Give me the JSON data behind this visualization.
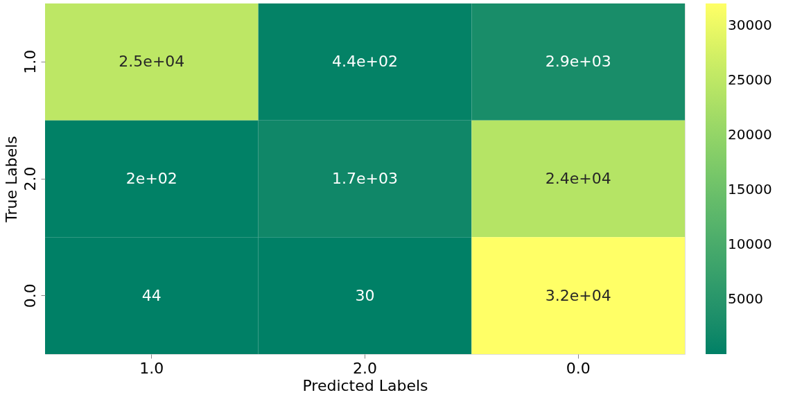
{
  "chart_data": {
    "type": "heatmap",
    "xlabel": "Predicted Labels",
    "ylabel": "True Labels",
    "categories": [
      "1.0",
      "2.0",
      "0.0"
    ],
    "y_categories": [
      "1.0",
      "2.0",
      "0.0"
    ],
    "cells": [
      [
        25000,
        440,
        2900
      ],
      [
        200,
        1700,
        24000
      ],
      [
        44,
        30,
        32000
      ]
    ],
    "cell_labels": [
      [
        "2.5e+04",
        "4.4e+02",
        "2.9e+03"
      ],
      [
        "2e+02",
        "1.7e+03",
        "2.4e+04"
      ],
      [
        "44",
        "30",
        "3.2e+04"
      ]
    ],
    "clim": [
      30,
      32000
    ],
    "cticks": [
      5000,
      10000,
      15000,
      20000,
      25000,
      30000
    ]
  }
}
